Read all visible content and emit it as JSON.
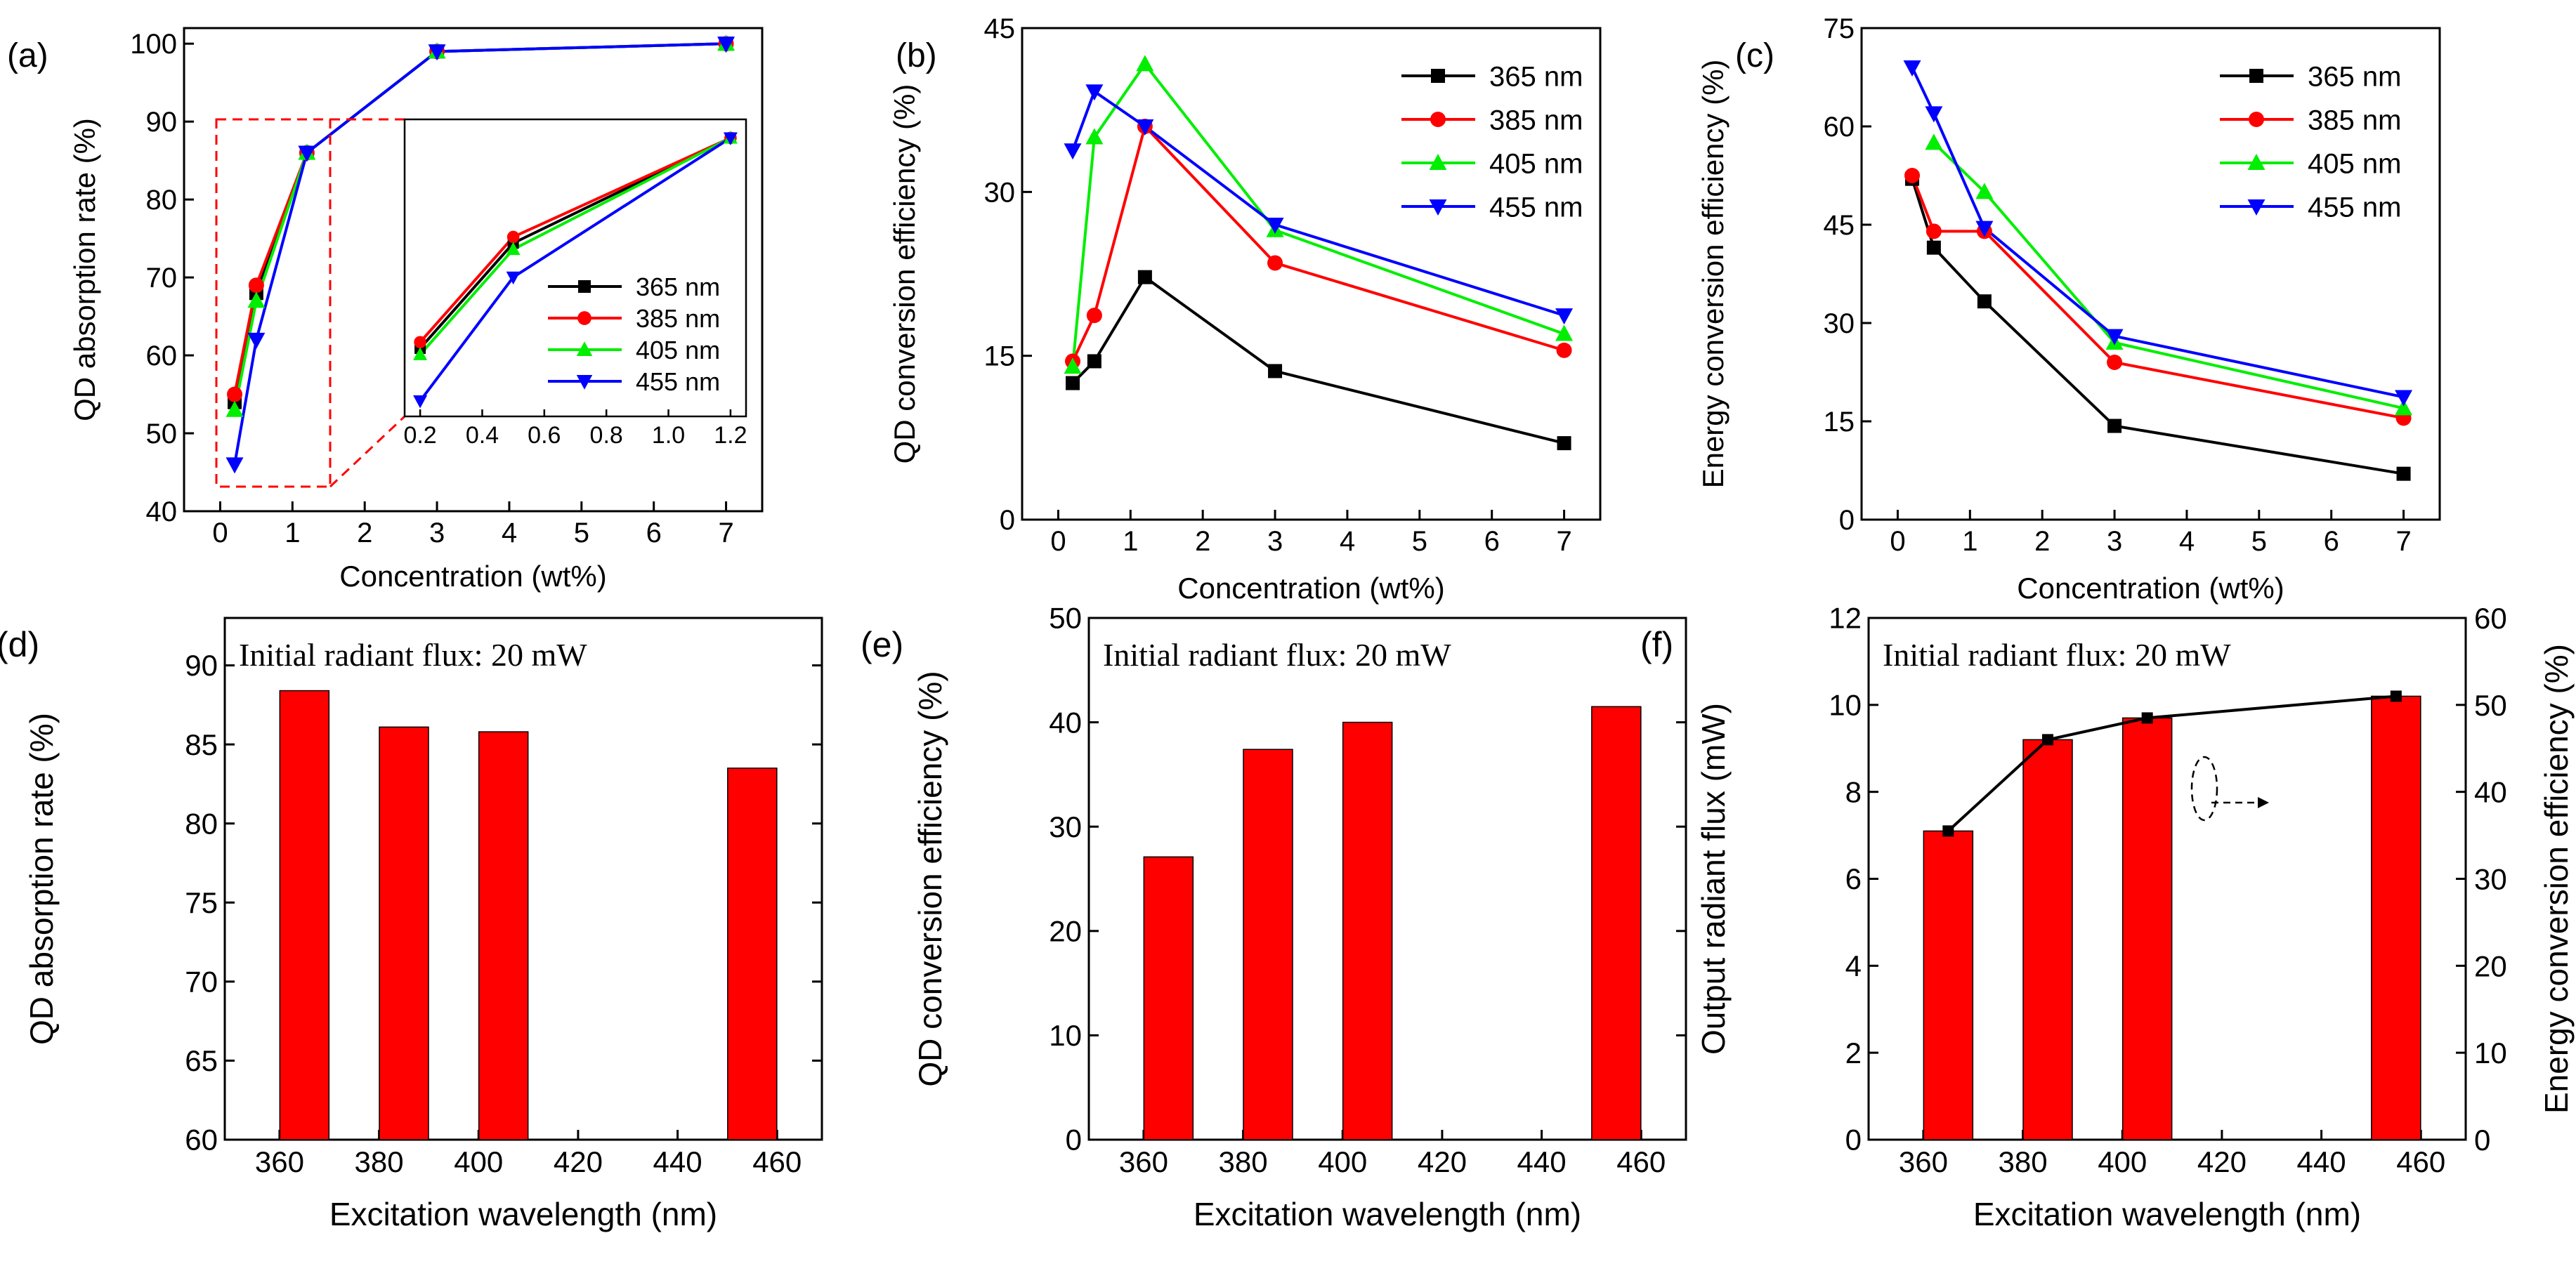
{
  "chart_data": [
    {
      "id": "a",
      "panel_label": "(a)",
      "type": "line",
      "xlabel": "Concentration (wt%)",
      "ylabel": "QD absorption rate (%)",
      "xlim": [
        -0.5,
        7.5
      ],
      "ylim": [
        40,
        102
      ],
      "xticks": [
        0,
        1,
        2,
        3,
        4,
        5,
        6,
        7
      ],
      "yticks": [
        40,
        50,
        60,
        70,
        80,
        90,
        100
      ],
      "x": [
        0.2,
        0.5,
        1.2,
        3,
        7
      ],
      "series": [
        {
          "name": "365 nm",
          "values": [
            54,
            68,
            86,
            99,
            100
          ]
        },
        {
          "name": "385 nm",
          "values": [
            55,
            69,
            86,
            99,
            100
          ]
        },
        {
          "name": "405 nm",
          "values": [
            53,
            67,
            86,
            99,
            100
          ]
        },
        {
          "name": "455 nm",
          "values": [
            46,
            62,
            86,
            99,
            100
          ]
        }
      ],
      "inset": {
        "xlim": [
          0.15,
          1.25
        ],
        "ylim": [
          43,
          91
        ],
        "xticks": [
          0.2,
          0.4,
          0.6,
          0.8,
          1.0,
          1.2
        ],
        "x": [
          0.2,
          0.5,
          1.2
        ],
        "series": [
          {
            "name": "365 nm",
            "values": [
              54,
              71,
              88
            ]
          },
          {
            "name": "385 nm",
            "values": [
              55,
              72,
              88
            ]
          },
          {
            "name": "405 nm",
            "values": [
              53,
              70,
              88
            ]
          },
          {
            "name": "455 nm",
            "values": [
              45.5,
              65.5,
              88
            ]
          }
        ]
      }
    },
    {
      "id": "b",
      "panel_label": "(b)",
      "type": "line",
      "xlabel": "Concentration (wt%)",
      "ylabel": "QD conversion efficiency (%)",
      "xlim": [
        -0.5,
        7.5
      ],
      "ylim": [
        0,
        45
      ],
      "xticks": [
        0,
        1,
        2,
        3,
        4,
        5,
        6,
        7
      ],
      "yticks": [
        0,
        15,
        30,
        45
      ],
      "x": [
        0.2,
        0.5,
        1.2,
        3,
        7
      ],
      "series": [
        {
          "name": "365 nm",
          "values": [
            12.5,
            14.5,
            22.2,
            13.6,
            7.0
          ]
        },
        {
          "name": "385 nm",
          "values": [
            14.5,
            18.7,
            36.0,
            23.5,
            15.5
          ]
        },
        {
          "name": "405 nm",
          "values": [
            14.0,
            35.0,
            41.7,
            26.5,
            17.0
          ]
        },
        {
          "name": "455 nm",
          "values": [
            33.8,
            39.2,
            36.0,
            27.0,
            18.7
          ]
        }
      ]
    },
    {
      "id": "c",
      "panel_label": "(c)",
      "type": "line",
      "xlabel": "Concentration (wt%)",
      "ylabel": "Energy conversion efficiency (%)",
      "xlim": [
        -0.5,
        7.5
      ],
      "ylim": [
        0,
        75
      ],
      "xticks": [
        0,
        1,
        2,
        3,
        4,
        5,
        6,
        7
      ],
      "yticks": [
        0,
        15,
        30,
        45,
        60,
        75
      ],
      "x": [
        0.2,
        0.5,
        1.2,
        3,
        7
      ],
      "series": [
        {
          "name": "365 nm",
          "values": [
            52,
            41.5,
            33.3,
            14.3,
            7.0
          ]
        },
        {
          "name": "385 nm",
          "values": [
            52.5,
            44.0,
            44.0,
            24.0,
            15.5
          ]
        },
        {
          "name": "405 nm",
          "values": [
            null,
            57.5,
            50.0,
            27.0,
            17.0
          ]
        },
        {
          "name": "455 nm",
          "values": [
            69.0,
            62.0,
            44.5,
            28.0,
            18.7
          ]
        }
      ]
    },
    {
      "id": "d",
      "panel_label": "(d)",
      "type": "bar",
      "annotation": "Initial radiant flux: 20 mW",
      "xlabel": "Excitation wavelength (nm)",
      "ylabel": "QD absorption rate (%)",
      "xlim": [
        349,
        469
      ],
      "ylim": [
        60,
        93
      ],
      "xticks": [
        360,
        380,
        400,
        420,
        440,
        460
      ],
      "yticks": [
        60,
        65,
        70,
        75,
        80,
        85,
        90
      ],
      "x": [
        365,
        385,
        405,
        455
      ],
      "values": [
        88.4,
        86.1,
        85.8,
        83.5
      ]
    },
    {
      "id": "e",
      "panel_label": "(e)",
      "type": "bar",
      "annotation": "Initial radiant flux: 20 mW",
      "xlabel": "Excitation wavelength (nm)",
      "ylabel": "QD conversion efficiency (%)",
      "xlim": [
        349,
        469
      ],
      "ylim": [
        0,
        50
      ],
      "xticks": [
        360,
        380,
        400,
        420,
        440,
        460
      ],
      "yticks": [
        0,
        10,
        20,
        30,
        40,
        50
      ],
      "x": [
        365,
        385,
        405,
        455
      ],
      "values": [
        27.1,
        37.4,
        40.0,
        41.5
      ]
    },
    {
      "id": "f",
      "panel_label": "(f)",
      "type": "bar+line",
      "annotation": "Initial radiant flux: 20 mW",
      "xlabel": "Excitation wavelength (nm)",
      "ylabel": "Output radiant flux (mW)",
      "ylabel_right": "Energy conversion efficiency (%)",
      "xlim": [
        349,
        469
      ],
      "ylim": [
        0,
        12
      ],
      "ylim_right": [
        0,
        60
      ],
      "xticks": [
        360,
        380,
        400,
        420,
        440,
        460
      ],
      "yticks": [
        0,
        2,
        4,
        6,
        8,
        10,
        12
      ],
      "yticks_right": [
        0,
        10,
        20,
        30,
        40,
        50,
        60
      ],
      "x": [
        365,
        385,
        405,
        455
      ],
      "values": [
        7.1,
        9.2,
        9.7,
        10.2
      ],
      "line_values_right": [
        35.5,
        46.0,
        48.5,
        51.0
      ]
    }
  ]
}
